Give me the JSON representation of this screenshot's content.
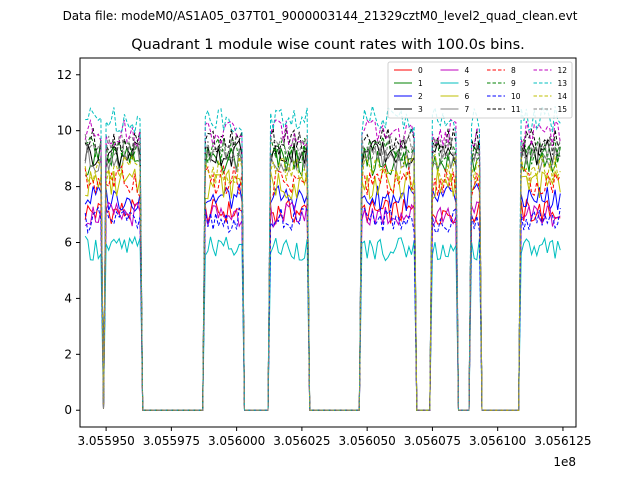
{
  "figure": {
    "suptitle": "Data file: modeM0/AS1A05_037T01_9000003144_21329cztM0_level2_quad_clean.evt",
    "title": "Quadrant 1 module wise count rates with 100.0s bins."
  },
  "chart_data": {
    "type": "line",
    "title": "Quadrant 1 module wise count rates with 100.0s bins.",
    "xlabel": "",
    "ylabel": "",
    "x_offset_label": "1e8",
    "xlim": [
      305594000,
      305613000
    ],
    "ylim": [
      -0.6,
      12.6
    ],
    "x_ticks": [
      305595000,
      305597500,
      305600000,
      305602500,
      305605000,
      305607500,
      305610000,
      305612500
    ],
    "x_tick_labels": [
      "3.055950",
      "3.055975",
      "3.056000",
      "3.056025",
      "3.056050",
      "3.056075",
      "3.056100",
      "3.056125"
    ],
    "y_ticks": [
      0,
      2,
      4,
      6,
      8,
      10,
      12
    ],
    "y_tick_labels": [
      "0",
      "2",
      "4",
      "6",
      "8",
      "10",
      "12"
    ],
    "grid": false,
    "legend": {
      "placement": "top-right",
      "columns": 4
    },
    "x_start": 305594200,
    "bin_seconds": 100,
    "series": [
      {
        "name": "0",
        "color": "#ff0000",
        "dash": "solid",
        "level": 7.1,
        "amp": 0.45
      },
      {
        "name": "1",
        "color": "#008000",
        "dash": "solid",
        "level": 8.9,
        "amp": 0.55
      },
      {
        "name": "2",
        "color": "#0000ff",
        "dash": "solid",
        "level": 7.6,
        "amp": 0.5
      },
      {
        "name": "3",
        "color": "#000000",
        "dash": "solid",
        "level": 9.2,
        "amp": 0.5
      },
      {
        "name": "4",
        "color": "#bf00bf",
        "dash": "solid",
        "level": 7.0,
        "amp": 0.45
      },
      {
        "name": "5",
        "color": "#00bfbf",
        "dash": "solid",
        "level": 5.8,
        "amp": 0.45
      },
      {
        "name": "6",
        "color": "#bfbf00",
        "dash": "solid",
        "level": 8.1,
        "amp": 0.55
      },
      {
        "name": "7",
        "color": "#808080",
        "dash": "solid",
        "level": 9.0,
        "amp": 0.5
      },
      {
        "name": "8",
        "color": "#ff0000",
        "dash": "dashed",
        "level": 8.2,
        "amp": 0.55
      },
      {
        "name": "9",
        "color": "#008000",
        "dash": "dashed",
        "level": 9.3,
        "amp": 0.5
      },
      {
        "name": "10",
        "color": "#0000ff",
        "dash": "dashed",
        "level": 6.8,
        "amp": 0.45
      },
      {
        "name": "11",
        "color": "#000000",
        "dash": "dashed",
        "level": 9.6,
        "amp": 0.5
      },
      {
        "name": "12",
        "color": "#bf00bf",
        "dash": "dashed",
        "level": 9.9,
        "amp": 0.5
      },
      {
        "name": "13",
        "color": "#00bfbf",
        "dash": "dashed",
        "level": 10.4,
        "amp": 0.5
      },
      {
        "name": "14",
        "color": "#bfbf00",
        "dash": "dashed",
        "level": 8.6,
        "amp": 0.55
      },
      {
        "name": "15",
        "color": "#808080",
        "dash": "dashed",
        "level": 9.4,
        "amp": 0.5
      }
    ],
    "on_intervals": [
      [
        305594200,
        305594800
      ],
      [
        305594800,
        305595000
      ],
      [
        305595000,
        305595300
      ],
      [
        305595300,
        305596300
      ],
      [
        305598800,
        305600200
      ],
      [
        305601300,
        305601600
      ],
      [
        305601700,
        305602700
      ],
      [
        305604800,
        305606800
      ],
      [
        305607500,
        305608400
      ],
      [
        305609000,
        305609300
      ],
      [
        305610900,
        305612400
      ]
    ]
  }
}
